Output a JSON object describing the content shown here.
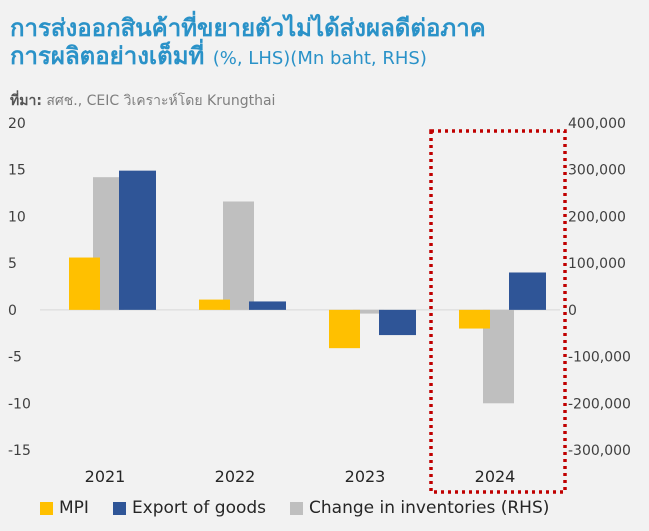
{
  "title": {
    "line1": "การส่งออกสินค้าที่ขยายตัวไม่ได้ส่งผลดีต่อภาค",
    "line2": "การผลิตอย่างเต็มที่",
    "units": "(%, LHS)(Mn baht, RHS)"
  },
  "source": {
    "label": "ที่มา:",
    "text": "สศช., CEIC  วิเคราะห์โดย Krungthai"
  },
  "colors": {
    "mpi": "#ffc000",
    "export": "#2f5597",
    "inventories": "#bfbfbf",
    "highlight": "#c00000",
    "gridline": "#d9d9d9"
  },
  "chart_data": {
    "type": "bar",
    "categories": [
      "2021",
      "2022",
      "2023",
      "2024"
    ],
    "series": [
      {
        "name": "MPI",
        "axis": "left",
        "values": [
          5.6,
          1.1,
          -4.1,
          -2.0
        ]
      },
      {
        "name": "Export of goods",
        "axis": "left",
        "values": [
          14.9,
          0.9,
          -2.7,
          4.0
        ]
      },
      {
        "name": "Change in inventories (RHS)",
        "axis": "right",
        "values": [
          284000,
          232000,
          -8000,
          -200000
        ]
      }
    ],
    "left_axis": {
      "ylim": [
        -15,
        20
      ],
      "ticks": [
        "20",
        "15",
        "10",
        "5",
        "0",
        "-5",
        "-10",
        "-15"
      ],
      "tick_values": [
        20,
        15,
        10,
        5,
        0,
        -5,
        -10,
        -15
      ]
    },
    "right_axis": {
      "ylim": [
        -300000,
        400000
      ],
      "ticks": [
        "400,000",
        "300,000",
        "200,000",
        "100,000",
        "0",
        "-100,000",
        "-200,000",
        "-300,000"
      ],
      "tick_values": [
        400000,
        300000,
        200000,
        100000,
        0,
        -100000,
        -200000,
        -300000
      ]
    },
    "highlighted_category": "2024",
    "legend_position": "bottom",
    "grid": false
  }
}
